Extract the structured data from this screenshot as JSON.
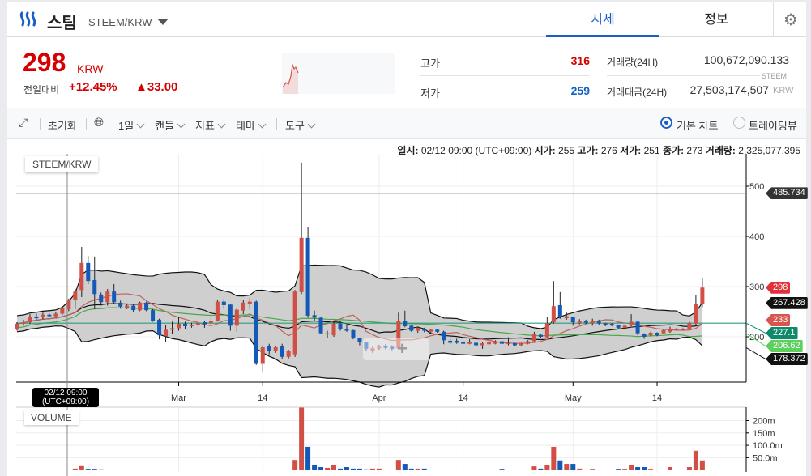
{
  "header": {
    "coin_name": "스팀",
    "pair": "STEEM/KRW",
    "tabs": [
      {
        "label": "시세",
        "active": true
      },
      {
        "label": "정보",
        "active": false
      }
    ]
  },
  "price": {
    "current": "298",
    "currency": "KRW",
    "change_label": "전일대비",
    "change_pct": "+12.45%",
    "change_abs": "▲33.00",
    "color_up": "#d60000",
    "color_down": "#1261c4"
  },
  "stats": {
    "high_label": "고가",
    "high": "316",
    "low_label": "저가",
    "low": "259",
    "volume_label": "거래량(24H)",
    "volume": "100,672,090.133",
    "volume_unit": "STEEM",
    "amount_label": "거래대금(24H)",
    "amount": "27,503,174,507",
    "amount_unit": "KRW"
  },
  "toolbar": {
    "reset": "초기화",
    "interval": "1일",
    "candle": "캔들",
    "indicator": "지표",
    "theme": "테마",
    "tools": "도구",
    "chart_basic": "기본 차트",
    "chart_tradingview": "트레이딩뷰",
    "selected": "basic"
  },
  "tooltip": {
    "date_label": "일시:",
    "date": "02/12 09:00 (UTC+09:00)",
    "open_label": "시가:",
    "open": "255",
    "high_label": "고가:",
    "high": "276",
    "low_label": "저가:",
    "low": "251",
    "close_label": "종가:",
    "close": "273",
    "volume_label": "거래량:",
    "volume": "2,325,077.395"
  },
  "chart_data": {
    "type": "candlestick",
    "legend": "STEEM/KRW",
    "volume_legend": "VOLUME",
    "crosshair_date": "02/12 09:00",
    "crosshair_tz": "(UTC+09:00)",
    "crosshair_price": "485.734",
    "y_ticks": [
      "500",
      "400",
      "300",
      "200"
    ],
    "ylim": [
      120,
      555
    ],
    "volume_ticks": [
      "200m",
      "150m",
      "100.0m",
      "50.0m"
    ],
    "volume_tick_values": [
      200,
      150,
      100,
      50
    ],
    "x_ticks": [
      {
        "label": "Mar",
        "date": "03/01"
      },
      {
        "label": "14",
        "date": "03/14"
      },
      {
        "label": "Apr",
        "date": "04/01"
      },
      {
        "label": "14",
        "date": "04/14"
      },
      {
        "label": "May",
        "date": "05/01"
      },
      {
        "label": "14",
        "date": "05/14"
      }
    ],
    "price_tags": [
      {
        "value": "485.734",
        "color": "#333333"
      },
      {
        "value": "298",
        "color": "#e0303a"
      },
      {
        "value": "267.428",
        "color": "#111111"
      },
      {
        "value": "233",
        "color": "#d9534f"
      },
      {
        "value": "206.62",
        "color": "#5ccf5c"
      },
      {
        "value": "227.1",
        "color": "#0d8a6a"
      },
      {
        "value": "178.372",
        "color": "#111111"
      }
    ],
    "hline": "227.1",
    "colors": {
      "up": "#d24f45",
      "down": "#1259b8",
      "band": "#cccccc",
      "ma_red": "#c0605a",
      "ma_green": "#4aa84a",
      "hline": "#2e9c7e"
    },
    "columns": [
      "date",
      "open",
      "high",
      "low",
      "close",
      "volume_m"
    ],
    "candles": [
      [
        "02/04",
        215,
        229,
        212,
        226,
        2
      ],
      [
        "02/05",
        226,
        234,
        222,
        229,
        1
      ],
      [
        "02/06",
        229,
        245,
        225,
        239,
        2
      ],
      [
        "02/07",
        240,
        246,
        234,
        237,
        1
      ],
      [
        "02/08",
        239,
        248,
        235,
        244,
        1
      ],
      [
        "02/09",
        244,
        246,
        239,
        241,
        1
      ],
      [
        "02/10",
        241,
        250,
        238,
        246,
        2
      ],
      [
        "02/11",
        246,
        260,
        243,
        258,
        2
      ],
      [
        "02/12",
        255,
        276,
        251,
        273,
        2.3
      ],
      [
        "02/13",
        273,
        296,
        255,
        290,
        6
      ],
      [
        "02/14",
        293,
        379,
        279,
        347,
        16
      ],
      [
        "02/15",
        347,
        361,
        305,
        311,
        5
      ],
      [
        "02/16",
        313,
        360,
        255,
        285,
        5
      ],
      [
        "02/17",
        284,
        288,
        262,
        269,
        3
      ],
      [
        "02/18",
        269,
        295,
        262,
        290,
        2
      ],
      [
        "02/19",
        290,
        305,
        265,
        269,
        2
      ],
      [
        "02/20",
        268,
        272,
        256,
        260,
        1
      ],
      [
        "02/21",
        257,
        266,
        255,
        262,
        1
      ],
      [
        "02/22",
        262,
        264,
        250,
        253,
        1
      ],
      [
        "02/23",
        253,
        270,
        251,
        268,
        1
      ],
      [
        "02/24",
        268,
        270,
        251,
        253,
        1
      ],
      [
        "02/25",
        253,
        255,
        230,
        232,
        2
      ],
      [
        "02/26",
        234,
        236,
        195,
        203,
        1
      ],
      [
        "02/27",
        201,
        224,
        190,
        214,
        1
      ],
      [
        "02/28",
        214,
        230,
        205,
        217,
        1
      ],
      [
        "03/01",
        217,
        240,
        212,
        226,
        1
      ],
      [
        "03/02",
        226,
        230,
        215,
        221,
        1
      ],
      [
        "03/03",
        221,
        228,
        218,
        224,
        1
      ],
      [
        "03/04",
        224,
        235,
        220,
        227,
        1
      ],
      [
        "03/05",
        229,
        232,
        218,
        225,
        1
      ],
      [
        "03/06",
        227,
        238,
        224,
        232,
        1
      ],
      [
        "03/07",
        232,
        274,
        230,
        270,
        2
      ],
      [
        "03/08",
        270,
        276,
        255,
        263,
        1
      ],
      [
        "03/09",
        264,
        266,
        212,
        222,
        1
      ],
      [
        "03/10",
        222,
        257,
        210,
        254,
        1
      ],
      [
        "03/11",
        252,
        273,
        245,
        268,
        1
      ],
      [
        "03/12",
        266,
        277,
        255,
        270,
        1
      ],
      [
        "03/13",
        270,
        272,
        144,
        146,
        2
      ],
      [
        "03/14",
        146,
        183,
        129,
        179,
        2
      ],
      [
        "03/15",
        182,
        186,
        165,
        172,
        1
      ],
      [
        "03/16",
        172,
        182,
        168,
        179,
        1
      ],
      [
        "03/17",
        182,
        186,
        155,
        160,
        1
      ],
      [
        "03/18",
        160,
        174,
        157,
        172,
        2
      ],
      [
        "03/19",
        165,
        293,
        160,
        290,
        41
      ],
      [
        "03/20",
        289,
        547,
        285,
        397,
        254
      ],
      [
        "03/21",
        397,
        419,
        238,
        242,
        94
      ],
      [
        "03/22",
        243,
        252,
        232,
        238,
        22
      ],
      [
        "03/23",
        238,
        240,
        205,
        207,
        12
      ],
      [
        "03/24",
        207,
        212,
        198,
        207,
        9
      ],
      [
        "03/25",
        203,
        231,
        200,
        226,
        22
      ],
      [
        "03/26",
        226,
        231,
        212,
        215,
        6
      ],
      [
        "03/27",
        216,
        224,
        210,
        212,
        12
      ],
      [
        "03/28",
        213,
        214,
        195,
        197,
        6
      ],
      [
        "03/29",
        197,
        198,
        183,
        189,
        6
      ],
      [
        "03/30",
        189,
        190,
        172,
        176,
        3
      ],
      [
        "03/31",
        172,
        180,
        168,
        177,
        6
      ],
      [
        "04/01",
        177,
        184,
        174,
        180,
        6
      ],
      [
        "04/02",
        182,
        185,
        175,
        178,
        2
      ],
      [
        "04/03",
        180,
        183,
        173,
        176,
        2
      ],
      [
        "04/04",
        177,
        248,
        175,
        231,
        41
      ],
      [
        "04/05",
        232,
        252,
        219,
        221,
        25
      ],
      [
        "04/06",
        222,
        224,
        210,
        212,
        6
      ],
      [
        "04/07",
        212,
        220,
        208,
        218,
        6
      ],
      [
        "04/08",
        216,
        218,
        209,
        212,
        6
      ],
      [
        "04/09",
        210,
        216,
        207,
        214,
        2
      ],
      [
        "04/10",
        214,
        215,
        208,
        210,
        2
      ],
      [
        "04/11",
        210,
        212,
        185,
        193,
        2
      ],
      [
        "04/12",
        192,
        197,
        186,
        188,
        2
      ],
      [
        "04/13",
        192,
        196,
        186,
        188,
        2
      ],
      [
        "04/14",
        190,
        191,
        185,
        186,
        2
      ],
      [
        "04/15",
        186,
        195,
        185,
        190,
        2
      ],
      [
        "04/16",
        188,
        190,
        181,
        183,
        2
      ],
      [
        "04/17",
        183,
        190,
        176,
        187,
        2
      ],
      [
        "04/18",
        185,
        191,
        183,
        189,
        2
      ],
      [
        "04/19",
        186,
        193,
        185,
        191,
        2
      ],
      [
        "04/20",
        191,
        192,
        185,
        186,
        5
      ],
      [
        "04/21",
        187,
        199,
        183,
        187,
        2
      ],
      [
        "04/22",
        187,
        188,
        182,
        183,
        2
      ],
      [
        "04/23",
        183,
        188,
        182,
        187,
        2
      ],
      [
        "04/24",
        186,
        193,
        185,
        191,
        2
      ],
      [
        "04/25",
        191,
        210,
        190,
        205,
        15
      ],
      [
        "04/26",
        204,
        206,
        198,
        200,
        6
      ],
      [
        "04/27",
        199,
        240,
        197,
        227,
        22
      ],
      [
        "04/28",
        229,
        311,
        226,
        261,
        94
      ],
      [
        "04/29",
        263,
        289,
        236,
        239,
        39
      ],
      [
        "04/30",
        237,
        248,
        234,
        241,
        25
      ],
      [
        "05/01",
        239,
        240,
        222,
        229,
        25
      ],
      [
        "05/02",
        227,
        235,
        225,
        232,
        6
      ],
      [
        "05/03",
        232,
        234,
        226,
        228,
        2
      ],
      [
        "05/04",
        227,
        236,
        222,
        232,
        5
      ],
      [
        "05/05",
        232,
        234,
        224,
        227,
        2
      ],
      [
        "05/06",
        227,
        228,
        221,
        223,
        2
      ],
      [
        "05/07",
        226,
        227,
        221,
        223,
        2
      ],
      [
        "05/08",
        223,
        224,
        216,
        218,
        5
      ],
      [
        "05/09",
        218,
        224,
        216,
        222,
        5
      ],
      [
        "05/10",
        223,
        245,
        221,
        230,
        22
      ],
      [
        "05/11",
        230,
        231,
        203,
        207,
        12
      ],
      [
        "05/12",
        206,
        207,
        196,
        200,
        12
      ],
      [
        "05/13",
        203,
        210,
        201,
        208,
        5
      ],
      [
        "05/14",
        208,
        209,
        201,
        203,
        2
      ],
      [
        "05/15",
        207,
        216,
        205,
        213,
        2
      ],
      [
        "05/16",
        210,
        220,
        208,
        215,
        12
      ],
      [
        "05/17",
        215,
        217,
        213,
        215,
        2
      ],
      [
        "05/18",
        215,
        217,
        213,
        215,
        2
      ],
      [
        "05/19",
        216,
        230,
        214,
        227,
        12
      ],
      [
        "05/20",
        226,
        283,
        224,
        265,
        78
      ],
      [
        "05/21",
        265,
        316,
        259,
        298,
        39
      ]
    ]
  }
}
